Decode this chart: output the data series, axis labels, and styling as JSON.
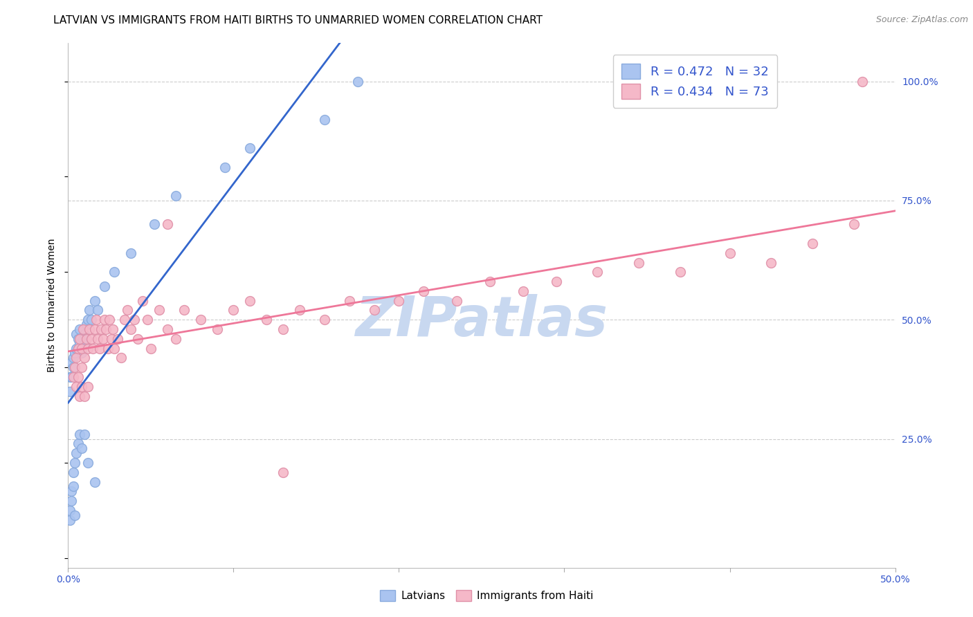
{
  "title": "LATVIAN VS IMMIGRANTS FROM HAITI BIRTHS TO UNMARRIED WOMEN CORRELATION CHART",
  "source": "Source: ZipAtlas.com",
  "ylabel": "Births to Unmarried Women",
  "xlim": [
    0.0,
    0.5
  ],
  "ylim": [
    -0.02,
    1.08
  ],
  "background_color": "#ffffff",
  "watermark_text": "ZIPatlas",
  "watermark_color": "#c8d8f0",
  "latvian_color": "#aac4f0",
  "latvian_edge_color": "#88aadd",
  "haiti_color": "#f5b8c8",
  "haiti_edge_color": "#e090a8",
  "latvian_R": 0.472,
  "latvian_N": 32,
  "haiti_R": 0.434,
  "haiti_N": 73,
  "legend_text_color": "#3355cc",
  "latvian_line_color": "#3366cc",
  "haiti_line_color": "#ee7799",
  "grid_color": "#cccccc",
  "grid_style": "--",
  "marker_size": 100,
  "marker_linewidth": 1.0,
  "title_fontsize": 11,
  "axis_label_fontsize": 10,
  "tick_fontsize": 10,
  "legend_fontsize": 13,
  "source_fontsize": 9,
  "lat_x": [
    0.001,
    0.001,
    0.002,
    0.002,
    0.003,
    0.003,
    0.004,
    0.005,
    0.005,
    0.006,
    0.006,
    0.007,
    0.007,
    0.008,
    0.009,
    0.01,
    0.01,
    0.011,
    0.012,
    0.013,
    0.014,
    0.016,
    0.018,
    0.022,
    0.028,
    0.038,
    0.052,
    0.065,
    0.095,
    0.11,
    0.155,
    0.175
  ],
  "lat_y": [
    0.38,
    0.35,
    0.41,
    0.38,
    0.42,
    0.4,
    0.43,
    0.44,
    0.47,
    0.44,
    0.46,
    0.45,
    0.48,
    0.43,
    0.46,
    0.47,
    0.45,
    0.49,
    0.5,
    0.52,
    0.5,
    0.54,
    0.52,
    0.57,
    0.6,
    0.64,
    0.7,
    0.76,
    0.82,
    0.86,
    0.92,
    1.0
  ],
  "lat_outlier_x": [
    0.002,
    0.003,
    0.004,
    0.005,
    0.006,
    0.007,
    0.008,
    0.01,
    0.012,
    0.016,
    0.001,
    0.001,
    0.002,
    0.003,
    0.004
  ],
  "lat_outlier_y": [
    0.14,
    0.18,
    0.2,
    0.22,
    0.24,
    0.26,
    0.23,
    0.26,
    0.2,
    0.16,
    0.08,
    0.1,
    0.12,
    0.15,
    0.09
  ],
  "hai_x": [
    0.003,
    0.004,
    0.005,
    0.006,
    0.007,
    0.008,
    0.009,
    0.01,
    0.011,
    0.012,
    0.013,
    0.014,
    0.015,
    0.016,
    0.017,
    0.018,
    0.019,
    0.02,
    0.021,
    0.022,
    0.023,
    0.024,
    0.025,
    0.026,
    0.027,
    0.028,
    0.03,
    0.032,
    0.034,
    0.036,
    0.038,
    0.04,
    0.042,
    0.045,
    0.048,
    0.05,
    0.055,
    0.06,
    0.065,
    0.07,
    0.08,
    0.09,
    0.1,
    0.11,
    0.12,
    0.13,
    0.14,
    0.155,
    0.17,
    0.185,
    0.2,
    0.215,
    0.235,
    0.255,
    0.275,
    0.295,
    0.32,
    0.345,
    0.37,
    0.4,
    0.425,
    0.45,
    0.475
  ],
  "hai_y": [
    0.38,
    0.4,
    0.42,
    0.44,
    0.46,
    0.44,
    0.48,
    0.42,
    0.46,
    0.44,
    0.48,
    0.46,
    0.44,
    0.48,
    0.5,
    0.46,
    0.44,
    0.48,
    0.46,
    0.5,
    0.48,
    0.44,
    0.5,
    0.46,
    0.48,
    0.44,
    0.46,
    0.42,
    0.5,
    0.52,
    0.48,
    0.5,
    0.46,
    0.54,
    0.5,
    0.44,
    0.52,
    0.48,
    0.46,
    0.52,
    0.5,
    0.48,
    0.52,
    0.54,
    0.5,
    0.48,
    0.52,
    0.5,
    0.54,
    0.52,
    0.54,
    0.56,
    0.54,
    0.58,
    0.56,
    0.58,
    0.6,
    0.62,
    0.6,
    0.64,
    0.62,
    0.66,
    0.7
  ],
  "hai_extra_x": [
    0.005,
    0.006,
    0.007,
    0.008,
    0.008,
    0.01,
    0.012,
    0.06,
    0.13,
    0.48
  ],
  "hai_extra_y": [
    0.36,
    0.38,
    0.34,
    0.36,
    0.4,
    0.34,
    0.36,
    0.7,
    0.18,
    1.0
  ]
}
